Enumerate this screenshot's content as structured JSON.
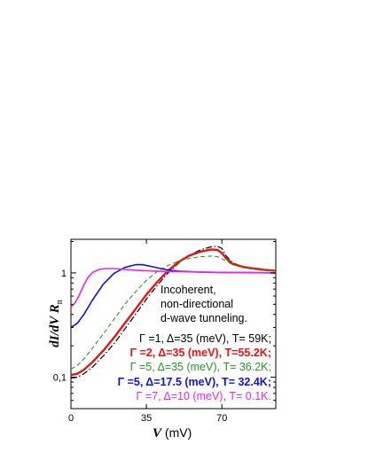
{
  "chart_data": {
    "type": "line",
    "xlabel_symbol": "V",
    "xlabel_unit": " (mV)",
    "ylabel_parts": [
      "dI/dV R",
      "n"
    ],
    "xlim": [
      0,
      95
    ],
    "ylim": [
      0.05,
      2.1
    ],
    "yscale": "log",
    "grid": false,
    "x_ticks": [
      {
        "value": 0,
        "label": "0"
      },
      {
        "value": 35,
        "label": "35"
      },
      {
        "value": 70,
        "label": "70"
      }
    ],
    "y_ticks": [
      {
        "value": 0.1,
        "label": "0,1"
      },
      {
        "value": 1,
        "label": "1"
      }
    ],
    "annotation": [
      "Incoherent,",
      "non-directional",
      "d-wave tunneling."
    ],
    "legend_entries": [
      {
        "text": "Γ =1, Δ=35 (meV), T= 59K;",
        "color": "#000000",
        "bold": false
      },
      {
        "text": "Γ =2, Δ=35 (meV), T=55.2K;",
        "color": "#ee1111",
        "bold": true
      },
      {
        "text": "Γ =5, Δ=35 (meV), T= 36.2K;",
        "color": "#229922",
        "bold": false
      },
      {
        "text": "Γ =5, Δ=17.5 (meV), T= 32.4K;",
        "color": "#1111dd",
        "bold": true
      },
      {
        "text": "Γ =7, Δ=10 (meV), T= 0.1K.",
        "color": "#ee22ee",
        "bold": false
      }
    ],
    "series": [
      {
        "color": "#000000",
        "style": "dashdot",
        "width": 1.2,
        "x": [
          0,
          3,
          6,
          10,
          15,
          20,
          25,
          30,
          35,
          40,
          45,
          50,
          55,
          60,
          65,
          68,
          70,
          72,
          75,
          80,
          85,
          90,
          95
        ],
        "y": [
          0.098,
          0.1,
          0.108,
          0.125,
          0.16,
          0.21,
          0.29,
          0.4,
          0.56,
          0.76,
          1.0,
          1.25,
          1.48,
          1.66,
          1.78,
          1.8,
          1.72,
          1.45,
          1.25,
          1.14,
          1.1,
          1.07,
          1.05
        ]
      },
      {
        "color": "#ee1111",
        "style": "solid",
        "width": 2.4,
        "x": [
          0,
          3,
          6,
          10,
          15,
          20,
          25,
          30,
          35,
          40,
          45,
          50,
          55,
          60,
          65,
          68,
          70,
          72,
          75,
          80,
          85,
          90,
          95
        ],
        "y": [
          0.105,
          0.108,
          0.118,
          0.14,
          0.18,
          0.24,
          0.33,
          0.45,
          0.62,
          0.82,
          1.05,
          1.28,
          1.47,
          1.6,
          1.68,
          1.66,
          1.55,
          1.38,
          1.22,
          1.14,
          1.1,
          1.07,
          1.05
        ]
      },
      {
        "color": "#229922",
        "style": "dashed",
        "width": 1.1,
        "x": [
          0,
          3,
          6,
          10,
          15,
          20,
          25,
          30,
          35,
          40,
          45,
          50,
          55,
          60,
          65,
          68,
          70,
          72,
          75,
          80,
          85,
          90,
          95
        ],
        "y": [
          0.12,
          0.13,
          0.15,
          0.19,
          0.26,
          0.36,
          0.5,
          0.66,
          0.85,
          1.03,
          1.18,
          1.3,
          1.38,
          1.43,
          1.45,
          1.43,
          1.37,
          1.3,
          1.2,
          1.12,
          1.08,
          1.06,
          1.04
        ]
      },
      {
        "color": "#1111dd",
        "style": "solid",
        "width": 1.6,
        "x": [
          0,
          3,
          6,
          10,
          15,
          20,
          25,
          30,
          33,
          36,
          40,
          45,
          50,
          55,
          60,
          70,
          80,
          95
        ],
        "y": [
          0.3,
          0.33,
          0.4,
          0.55,
          0.78,
          0.99,
          1.13,
          1.2,
          1.2,
          1.17,
          1.12,
          1.07,
          1.04,
          1.03,
          1.02,
          1.01,
          1.01,
          1.0
        ]
      },
      {
        "color": "#ee22ee",
        "style": "solid",
        "width": 1.6,
        "x": [
          0,
          2,
          4,
          6,
          8,
          10,
          13,
          16,
          20,
          25,
          30,
          40,
          50,
          60,
          70,
          80,
          95
        ],
        "y": [
          0.47,
          0.52,
          0.62,
          0.77,
          0.91,
          1.01,
          1.08,
          1.1,
          1.1,
          1.08,
          1.06,
          1.04,
          1.03,
          1.02,
          1.01,
          1.01,
          1.0
        ]
      }
    ]
  }
}
